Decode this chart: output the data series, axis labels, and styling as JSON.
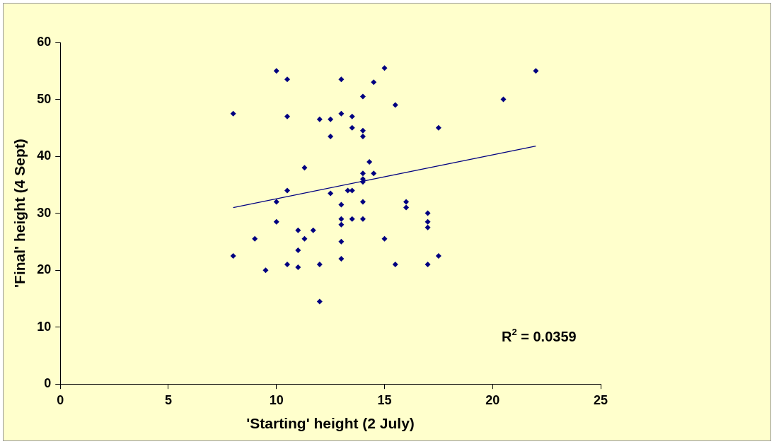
{
  "chart_data": {
    "type": "scatter",
    "xlabel": "'Starting' height (2 July)",
    "ylabel": "'Final' height (4 Sept)",
    "xlim": [
      0,
      25
    ],
    "xticks": [
      0,
      5,
      10,
      15,
      20,
      25
    ],
    "ylim": [
      0,
      60
    ],
    "yticks": [
      0,
      10,
      20,
      30,
      40,
      50,
      60
    ],
    "grid": false,
    "legend": false,
    "marker": "diamond",
    "annotations": [
      "R$^{2}$ = 0.0359"
    ],
    "series": [
      {
        "type": "scatter",
        "color": "#000080",
        "x": [
          8,
          8,
          9,
          9.5,
          10,
          10,
          10,
          10.5,
          10.5,
          10.5,
          10.5,
          11,
          11,
          11,
          11.3,
          11.3,
          11.7,
          12,
          12,
          12,
          12.5,
          12.5,
          12.5,
          13,
          13,
          13,
          13,
          13,
          13,
          13,
          13.3,
          13.5,
          13.5,
          13.5,
          13.5,
          14,
          14,
          14,
          14,
          14,
          14,
          14,
          14,
          14.3,
          14.5,
          14.5,
          15,
          15,
          15.5,
          15.5,
          16,
          16,
          17,
          17,
          17,
          17,
          17.5,
          17.5,
          20.5,
          22
        ],
        "values": [
          47.5,
          22.5,
          25.5,
          20,
          55,
          32,
          28.5,
          53.5,
          47,
          34,
          21,
          27,
          23.5,
          20.5,
          38,
          25.5,
          27,
          46.5,
          21,
          14.5,
          46.5,
          43.5,
          33.5,
          53.5,
          47.5,
          31.5,
          29,
          28,
          25,
          22,
          34,
          47,
          45,
          34,
          29,
          50.5,
          44.5,
          43.5,
          37,
          36,
          35.5,
          32,
          29,
          39,
          53,
          37,
          55.5,
          25.5,
          49,
          21,
          32,
          31,
          30,
          28.5,
          27.5,
          21,
          45,
          22.5,
          50,
          55
        ]
      },
      {
        "type": "line",
        "color": "#000080",
        "marker": "none",
        "x": [
          8,
          22
        ],
        "values": [
          31,
          41.8
        ]
      }
    ]
  }
}
